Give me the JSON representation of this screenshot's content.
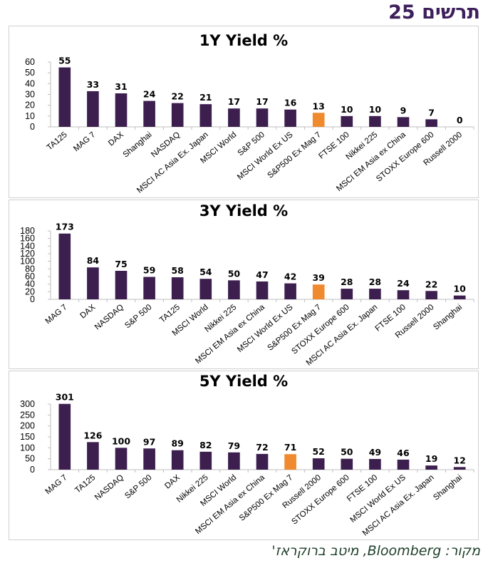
{
  "page": {
    "title_word": "תרשים",
    "title_number": "25",
    "source": "מקור: Bloomberg, מיטב ברוקראז'"
  },
  "colors": {
    "bar": "#3d1f4f",
    "highlight": "#f08a2e",
    "axis": "#bfbfbf",
    "text": "#000000"
  },
  "chart_data": [
    {
      "type": "bar",
      "title": "1Y Yield %",
      "categories": [
        "TA125",
        "MAG 7",
        "DAX",
        "Shanghai",
        "NASDAQ",
        "MSCI AC Asia Ex. Japan",
        "MSCI World",
        "S&P 500",
        "MSCI World Ex US",
        "S&P500 Ex Mag 7",
        "FTSE 100",
        "Nikkei 225",
        "MSCI EM Asia ex China",
        "STOXX Europe 600",
        "Russell 2000"
      ],
      "values": [
        55,
        33,
        31,
        24,
        22,
        21,
        17,
        17,
        16,
        13,
        10,
        10,
        9,
        7,
        0
      ],
      "highlight": "S&P500 Ex Mag 7",
      "yticks": [
        0,
        10,
        20,
        30,
        40,
        50,
        60
      ],
      "ylim": [
        0,
        60
      ],
      "grid": false,
      "legend": "none"
    },
    {
      "type": "bar",
      "title": "3Y Yield %",
      "categories": [
        "MAG 7",
        "DAX",
        "NASDAQ",
        "S&P 500",
        "TA125",
        "MSCI World",
        "Nikkei 225",
        "MSCI EM Asia ex China",
        "MSCI World Ex US",
        "S&P500 Ex Mag 7",
        "STOXX Europe 600",
        "MSCI AC Asia Ex. Japan",
        "FTSE 100",
        "Russell 2000",
        "Shanghai"
      ],
      "values": [
        173,
        84,
        75,
        59,
        58,
        54,
        50,
        47,
        42,
        39,
        28,
        28,
        24,
        22,
        10
      ],
      "highlight": "S&P500 Ex Mag 7",
      "yticks": [
        0,
        20,
        40,
        60,
        80,
        100,
        120,
        140,
        160,
        180
      ],
      "ylim": [
        0,
        180
      ],
      "grid": false,
      "legend": "none"
    },
    {
      "type": "bar",
      "title": "5Y Yield %",
      "categories": [
        "MAG 7",
        "TA125",
        "NASDAQ",
        "S&P 500",
        "DAX",
        "Nikkei 225",
        "MSCI World",
        "MSCI EM Asia ex China",
        "S&P500 Ex Mag 7",
        "Russell 2000",
        "STOXX Europe 600",
        "FTSE 100",
        "MSCI World Ex US",
        "MSCI AC Asia Ex. Japan",
        "Shanghai"
      ],
      "values": [
        301,
        126,
        100,
        97,
        89,
        82,
        79,
        72,
        71,
        52,
        50,
        49,
        46,
        19,
        12
      ],
      "highlight": "S&P500 Ex Mag 7",
      "yticks": [
        0,
        50,
        100,
        150,
        200,
        250,
        300
      ],
      "ylim": [
        0,
        300
      ],
      "grid": false,
      "legend": "none"
    }
  ]
}
